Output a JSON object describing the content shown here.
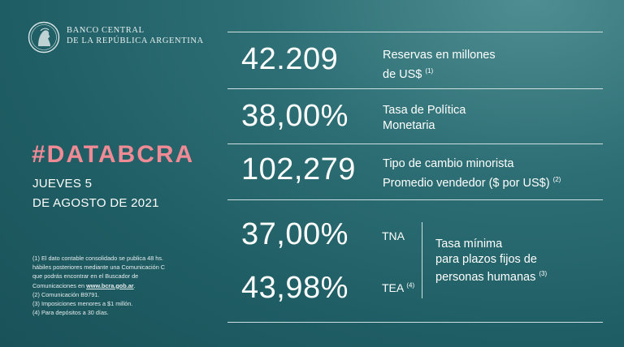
{
  "bank": {
    "line1": "BANCO CENTRAL",
    "line2": "DE LA REPÚBLICA ARGENTINA"
  },
  "hashtag": "#DATABCRA",
  "date": {
    "line1": "JUEVES 5",
    "line2": "DE AGOSTO DE 2021"
  },
  "notes": {
    "n1a": "(1) El dato contable consolidado se publica 48 hs.",
    "n1b": "hábiles posteriores mediante una Comunicación C",
    "n1c": "que podrás encontrar en el Buscador de",
    "n1d": "Comunicaciones en",
    "link": "www.bcra.gob.ar",
    "n1e": ".",
    "n2": "(2) Comunicación B9791.",
    "n3": "(3) Imposiciones menores a $1 millón.",
    "n4": "(4) Para depósitos a 30 días."
  },
  "stats": {
    "reservas": {
      "value": "42.209",
      "line1": "Reservas en millones",
      "line2": "de US$",
      "ref": "(1)"
    },
    "tasa": {
      "value": "38,00%",
      "line1": "Tasa de Política",
      "line2": "Monetaria"
    },
    "cambio": {
      "value": "102,279",
      "line1": "Tipo de cambio minorista",
      "line2": "Promedio vendedor  ($ por US$)",
      "ref": "(2)"
    },
    "tna": {
      "value": "37,00%",
      "label": "TNA"
    },
    "tea": {
      "value": "43,98%",
      "label": "TEA",
      "ref": "(4)"
    },
    "plazo": {
      "line1": "Tasa mínima",
      "line2": "para plazos fijos de",
      "line3": "personas humanas",
      "ref": "(3)"
    }
  }
}
